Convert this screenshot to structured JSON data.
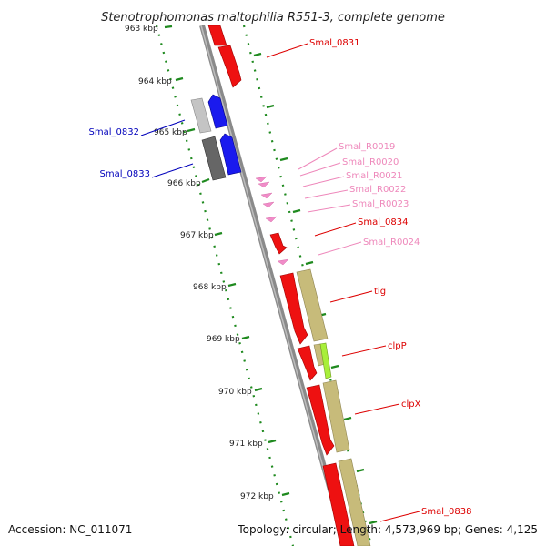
{
  "title": "Stenotrophomonas maltophilia R551-3, complete genome",
  "accession": "Accession: NC_011071",
  "topology": "Topology: circular; Length: 4,573,969 bp; Genes: 4,125",
  "ticks": [
    "963 kbp",
    "964 kbp",
    "965 kbp",
    "966 kbp",
    "967 kbp",
    "968 kbp",
    "969 kbp",
    "970 kbp",
    "971 kbp",
    "972 kbp"
  ],
  "labels": {
    "smal_0831": "Smal_0831",
    "smal_0832": "Smal_0832",
    "smal_0833": "Smal_0833",
    "smal_r0019": "Smal_R0019",
    "smal_r0020": "Smal_R0020",
    "smal_r0021": "Smal_R0021",
    "smal_r0022": "Smal_R0022",
    "smal_r0023": "Smal_R0023",
    "smal_0834": "Smal_0834",
    "smal_r0024": "Smal_R0024",
    "tig": "tig",
    "clpP": "clpP",
    "clpX": "clpX",
    "smal_0838": "Smal_0838"
  },
  "colors": {
    "backbone": "#8a8a8a",
    "ticks": "#1f8a1f",
    "cds_red": "#ee1111",
    "cds_blue": "#1a1aee",
    "cds_gray_light": "#c4c4c4",
    "cds_gray_dark": "#666666",
    "rna_pink": "#f08cc8",
    "feature_tan": "#c7bb7a",
    "feature_green": "#a8ef3a",
    "label_red": "#dd0000",
    "label_blue": "#0000bb",
    "label_pink": "#ee88bb"
  }
}
